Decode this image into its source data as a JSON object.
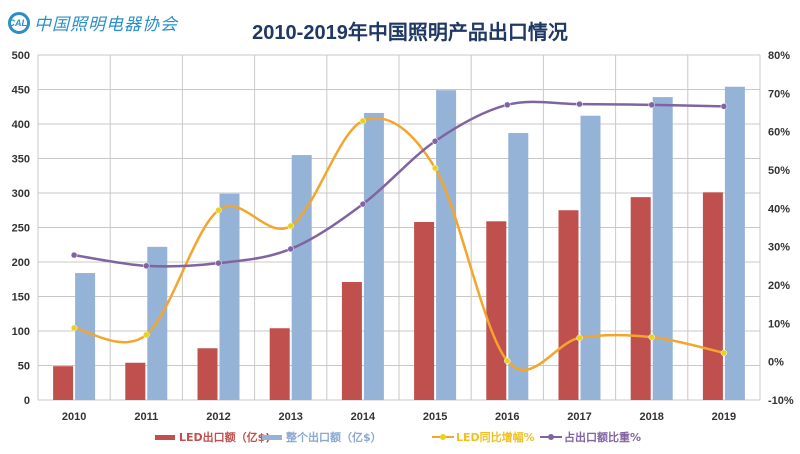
{
  "logo": {
    "mark": "CALI",
    "text": "中国照明电器协会"
  },
  "chart_data": {
    "type": "bar+line",
    "title": "2010-2019年中国照明产品出口情况",
    "categories": [
      "2010",
      "2011",
      "2012",
      "2013",
      "2014",
      "2015",
      "2016",
      "2017",
      "2018",
      "2019"
    ],
    "y_left": {
      "min": 0,
      "max": 500,
      "ticks": [
        0,
        50,
        100,
        150,
        200,
        250,
        300,
        350,
        400,
        450,
        500
      ]
    },
    "y_right": {
      "min": -10,
      "max": 80,
      "ticks": [
        "-10%",
        "0%",
        "10%",
        "20%",
        "30%",
        "40%",
        "50%",
        "60%",
        "70%",
        "80%"
      ]
    },
    "grid": true,
    "legend_position": "bottom",
    "series": [
      {
        "name": "LED出口额（亿$)",
        "type": "bar",
        "axis": "left",
        "color": "#c0504d",
        "values": [
          49,
          54,
          75,
          104,
          171,
          258,
          259,
          275,
          294,
          301
        ]
      },
      {
        "name": "整个出口额（亿$）",
        "type": "bar",
        "axis": "left",
        "color": "#95b3d7",
        "values": [
          184,
          222,
          299,
          355,
          416,
          449,
          387,
          412,
          439,
          454
        ]
      },
      {
        "name": "LED同比增幅%",
        "type": "line",
        "axis": "right",
        "color": "#f4a52c",
        "marker_color": "#e8d21d",
        "values": [
          8.8,
          7.0,
          39.5,
          35.4,
          62.8,
          50.5,
          0.2,
          6.2,
          6.4,
          2.3
        ]
      },
      {
        "name": "占出口额比重%",
        "type": "line",
        "axis": "right",
        "color": "#8064a2",
        "marker_color": "#8064a2",
        "values": [
          27.8,
          25.0,
          25.7,
          29.4,
          41.1,
          57.5,
          67.0,
          67.2,
          67.0,
          66.6
        ]
      }
    ]
  }
}
